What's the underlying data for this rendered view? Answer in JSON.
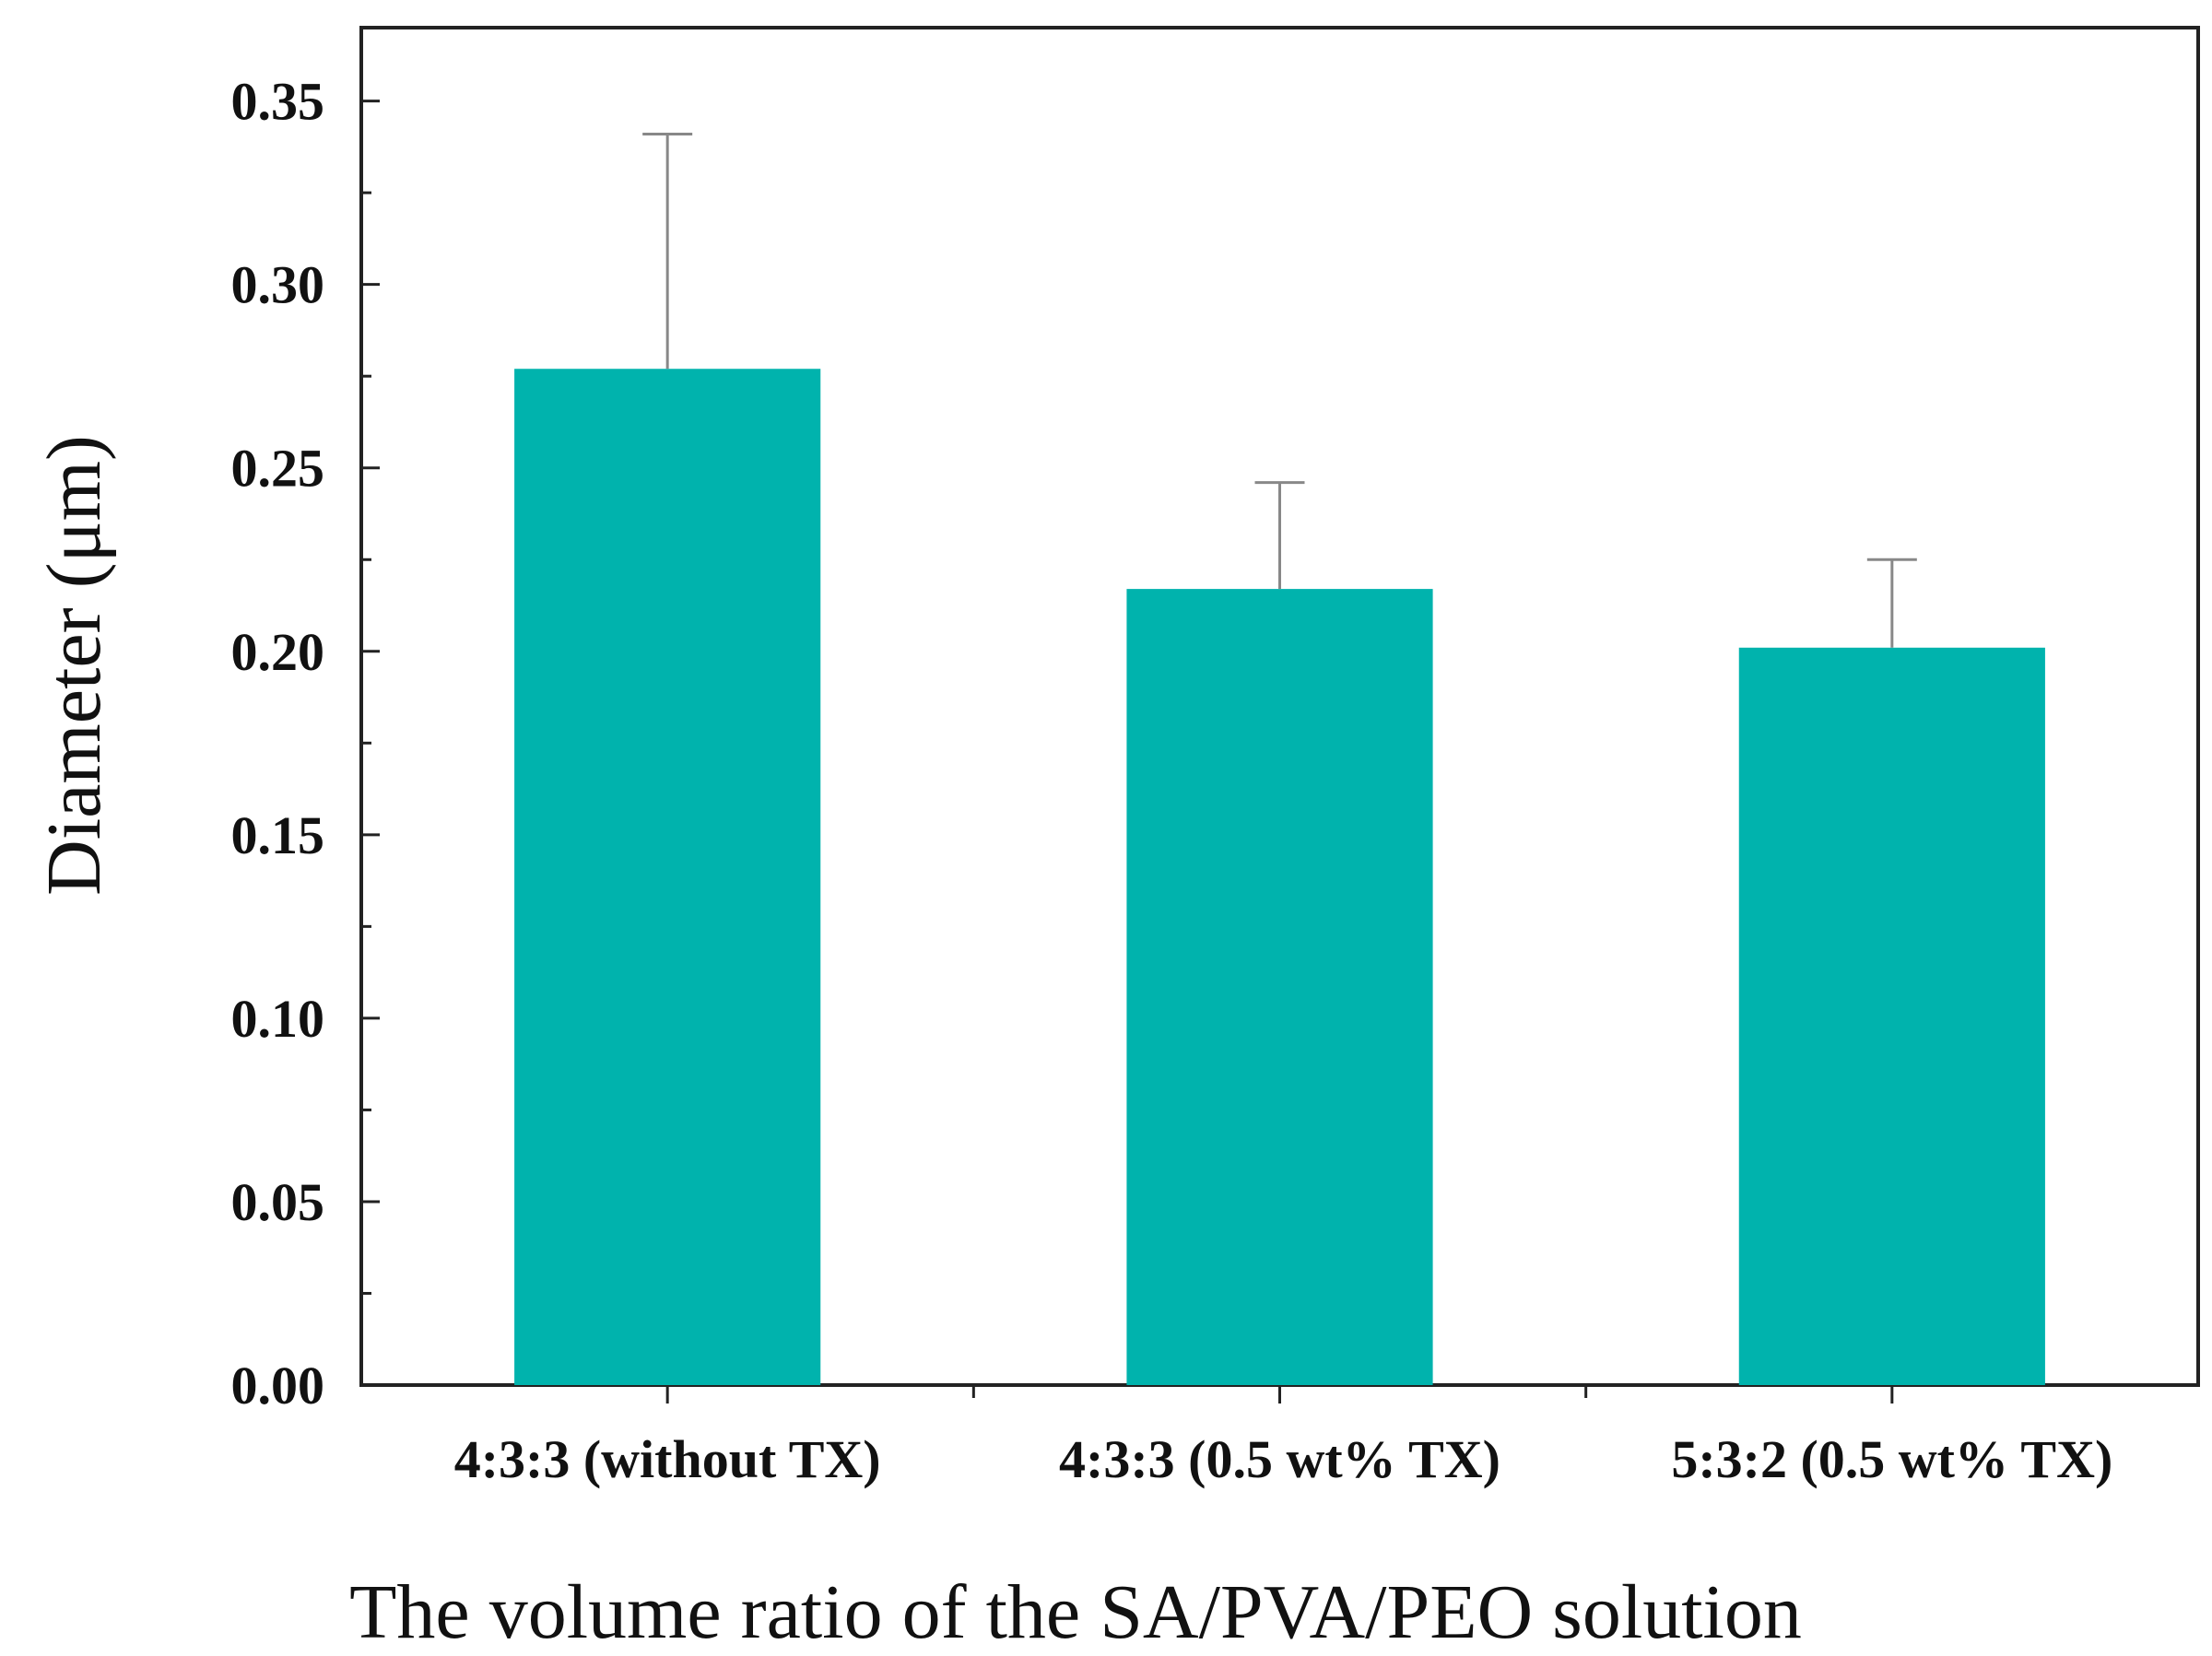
{
  "chart_data": {
    "type": "bar",
    "title": "",
    "xlabel": "The volume ratio of the SA/PVA/PEO solution",
    "ylabel": "Diameter (μm)",
    "categories": [
      "4:3:3 (without TX)",
      "4:3:3 (0.5 wt%  TX)",
      "5:3:2 (0.5 wt% TX)"
    ],
    "values": [
      0.277,
      0.217,
      0.201
    ],
    "error_upper": [
      0.064,
      0.029,
      0.024
    ],
    "ylim": [
      0,
      0.37
    ],
    "yticks": [
      0.0,
      0.05,
      0.1,
      0.15,
      0.2,
      0.25,
      0.3,
      0.35
    ],
    "ytick_labels": [
      "0.00",
      "0.05",
      "0.10",
      "0.15",
      "0.20",
      "0.25",
      "0.30",
      "0.35"
    ],
    "grid": false,
    "legend": "none",
    "bar_color": "#00b3ad",
    "error_bar_color": "#888888"
  }
}
